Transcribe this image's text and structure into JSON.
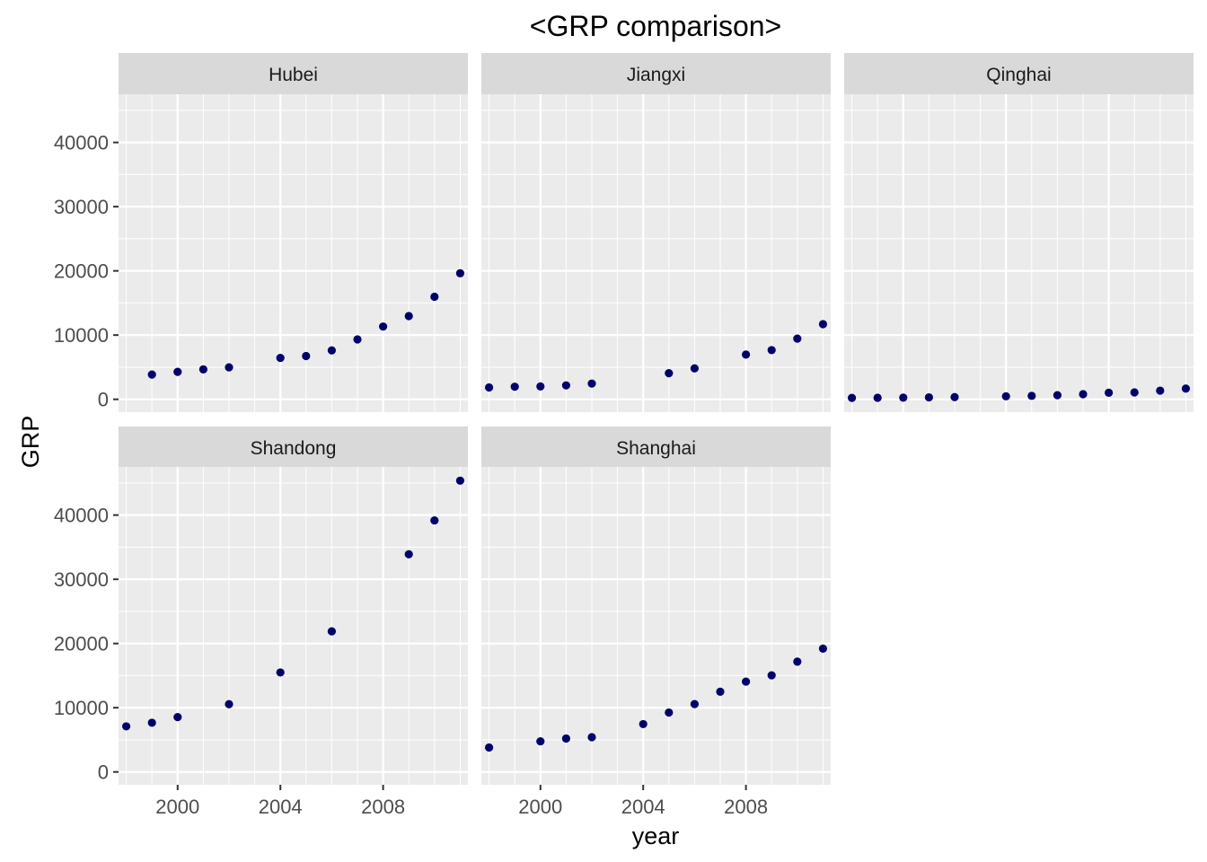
{
  "chart_data": {
    "type": "scatter",
    "title": "<GRP comparison>",
    "xlabel": "year",
    "ylabel": "GRP",
    "xlim": [
      1997.7,
      2011.3
    ],
    "ylim": [
      -2000,
      47500
    ],
    "x_ticks": [
      2000,
      2004,
      2008
    ],
    "y_ticks": [
      0,
      10000,
      20000,
      30000,
      40000
    ],
    "grid": true,
    "legend": "none",
    "point_color": "#00006b",
    "panel_background": "#ebebeb",
    "strip_background": "#d9d9d9",
    "panels": [
      {
        "name": "Hubei",
        "points": [
          {
            "x": 1999,
            "y": 3860
          },
          {
            "x": 2000,
            "y": 4280
          },
          {
            "x": 2001,
            "y": 4660
          },
          {
            "x": 2002,
            "y": 4980
          },
          {
            "x": 2004,
            "y": 6450
          },
          {
            "x": 2005,
            "y": 6740
          },
          {
            "x": 2006,
            "y": 7620
          },
          {
            "x": 2007,
            "y": 9330
          },
          {
            "x": 2008,
            "y": 11330
          },
          {
            "x": 2009,
            "y": 12960
          },
          {
            "x": 2010,
            "y": 15970
          },
          {
            "x": 2011,
            "y": 19630
          }
        ]
      },
      {
        "name": "Jiangxi",
        "points": [
          {
            "x": 1998,
            "y": 1850
          },
          {
            "x": 1999,
            "y": 1960
          },
          {
            "x": 2000,
            "y": 2000
          },
          {
            "x": 2001,
            "y": 2170
          },
          {
            "x": 2002,
            "y": 2450
          },
          {
            "x": 2005,
            "y": 4060
          },
          {
            "x": 2006,
            "y": 4820
          },
          {
            "x": 2008,
            "y": 6970
          },
          {
            "x": 2009,
            "y": 7660
          },
          {
            "x": 2010,
            "y": 9450
          },
          {
            "x": 2011,
            "y": 11700
          }
        ]
      },
      {
        "name": "Qinghai",
        "points": [
          {
            "x": 1998,
            "y": 220
          },
          {
            "x": 1999,
            "y": 240
          },
          {
            "x": 2000,
            "y": 260
          },
          {
            "x": 2001,
            "y": 300
          },
          {
            "x": 2002,
            "y": 340
          },
          {
            "x": 2004,
            "y": 470
          },
          {
            "x": 2005,
            "y": 540
          },
          {
            "x": 2006,
            "y": 640
          },
          {
            "x": 2007,
            "y": 800
          },
          {
            "x": 2008,
            "y": 1020
          },
          {
            "x": 2009,
            "y": 1080
          },
          {
            "x": 2010,
            "y": 1350
          },
          {
            "x": 2011,
            "y": 1670
          }
        ]
      },
      {
        "name": "Shandong",
        "points": [
          {
            "x": 1998,
            "y": 7100
          },
          {
            "x": 1999,
            "y": 7660
          },
          {
            "x": 2000,
            "y": 8540
          },
          {
            "x": 2002,
            "y": 10550
          },
          {
            "x": 2004,
            "y": 15490
          },
          {
            "x": 2006,
            "y": 21900
          },
          {
            "x": 2009,
            "y": 33900
          },
          {
            "x": 2010,
            "y": 39170
          },
          {
            "x": 2011,
            "y": 45360
          }
        ]
      },
      {
        "name": "Shanghai",
        "points": [
          {
            "x": 1998,
            "y": 3800
          },
          {
            "x": 2000,
            "y": 4770
          },
          {
            "x": 2001,
            "y": 5210
          },
          {
            "x": 2002,
            "y": 5410
          },
          {
            "x": 2004,
            "y": 7450
          },
          {
            "x": 2005,
            "y": 9250
          },
          {
            "x": 2006,
            "y": 10570
          },
          {
            "x": 2007,
            "y": 12490
          },
          {
            "x": 2008,
            "y": 14070
          },
          {
            "x": 2009,
            "y": 15050
          },
          {
            "x": 2010,
            "y": 17170
          },
          {
            "x": 2011,
            "y": 19200
          }
        ]
      }
    ]
  }
}
